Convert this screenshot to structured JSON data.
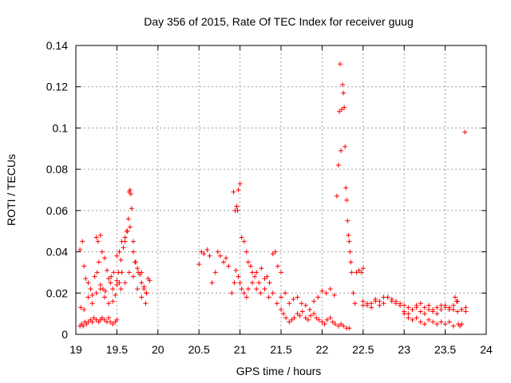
{
  "chart_data": {
    "type": "scatter",
    "title": "Day 356 of 2015, Rate Of TEC Index for receiver guug",
    "xlabel": "GPS time / hours",
    "ylabel": "ROTI / TECUs",
    "xlim": [
      19,
      24
    ],
    "ylim": [
      0,
      0.14
    ],
    "xticks": [
      19,
      19.5,
      20,
      20.5,
      21,
      21.5,
      22,
      22.5,
      23,
      23.5,
      24
    ],
    "xtick_labels": [
      "19",
      "19.5",
      "20",
      "20.5",
      "21",
      "21.5",
      "22",
      "22.5",
      "23",
      "23.5",
      "24"
    ],
    "yticks": [
      0,
      0.02,
      0.04,
      0.06,
      0.08,
      0.1,
      0.12,
      0.14
    ],
    "ytick_labels": [
      "0",
      "0.02",
      "0.04",
      "0.06",
      "0.08",
      "0.1",
      "0.12",
      "0.14"
    ],
    "grid": true,
    "marker": "+",
    "color": "#ff0000",
    "series": [
      {
        "name": "ROTI",
        "x": [
          19.05,
          19.07,
          19.09,
          19.11,
          19.13,
          19.15,
          19.18,
          19.2,
          19.22,
          19.25,
          19.28,
          19.3,
          19.32,
          19.35,
          19.38,
          19.4,
          19.42,
          19.45,
          19.48,
          19.5,
          19.05,
          19.08,
          19.1,
          19.12,
          19.15,
          19.18,
          19.2,
          19.23,
          19.26,
          19.28,
          19.3,
          19.33,
          19.36,
          19.4,
          19.43,
          19.46,
          19.5,
          19.53,
          19.56,
          19.6,
          19.63,
          19.66,
          19.7,
          19.73,
          19.76,
          19.8,
          19.83,
          19.86,
          19.9,
          19.06,
          19.1,
          19.15,
          19.2,
          19.25,
          19.3,
          19.35,
          19.4,
          19.45,
          19.5,
          19.55,
          19.6,
          19.65,
          19.7,
          19.75,
          19.8,
          19.85,
          19.52,
          19.55,
          19.58,
          19.6,
          19.62,
          19.64,
          19.65,
          19.66,
          19.67,
          19.68,
          19.7,
          19.72,
          19.75,
          19.78,
          19.8,
          19.83,
          19.86,
          19.88,
          19.25,
          19.27,
          19.3,
          19.32,
          19.35,
          19.38,
          19.42,
          19.45,
          19.48,
          19.5,
          19.53,
          19.56,
          20.5,
          20.53,
          20.56,
          20.6,
          20.63,
          20.66,
          20.7,
          20.73,
          20.76,
          20.8,
          20.83,
          20.86,
          20.9,
          20.93,
          20.95,
          20.96,
          20.97,
          20.98,
          21.0,
          21.02,
          21.05,
          21.08,
          21.1,
          21.13,
          21.15,
          21.18,
          21.2,
          21.23,
          21.26,
          21.3,
          21.33,
          21.36,
          21.4,
          21.43,
          21.46,
          21.5,
          20.92,
          20.94,
          20.96,
          20.98,
          21.0,
          21.02,
          21.05,
          21.08,
          21.1,
          21.15,
          21.2,
          21.25,
          21.3,
          21.35,
          21.4,
          21.45,
          21.5,
          21.55,
          21.6,
          21.65,
          21.7,
          21.75,
          21.8,
          21.85,
          21.9,
          21.95,
          22.0,
          22.05,
          22.1,
          22.15,
          21.5,
          21.53,
          21.56,
          21.6,
          21.63,
          21.66,
          21.7,
          21.73,
          21.76,
          21.8,
          21.83,
          21.86,
          21.9,
          21.93,
          21.96,
          22.0,
          22.03,
          22.06,
          22.1,
          22.13,
          22.16,
          22.2,
          22.23,
          22.26,
          22.3,
          22.33,
          22.18,
          22.2,
          22.21,
          22.22,
          22.23,
          22.24,
          22.25,
          22.26,
          22.27,
          22.28,
          22.29,
          22.3,
          22.31,
          22.32,
          22.33,
          22.34,
          22.35,
          22.36,
          22.38,
          22.4,
          22.42,
          22.45,
          22.48,
          22.5,
          22.5,
          22.55,
          22.6,
          22.65,
          22.7,
          22.75,
          22.8,
          22.85,
          22.9,
          22.95,
          23.0,
          23.05,
          23.1,
          23.15,
          23.2,
          23.25,
          23.3,
          23.35,
          23.4,
          23.45,
          23.5,
          23.55,
          23.6,
          23.65,
          23.7,
          23.75,
          22.5,
          22.55,
          22.6,
          22.65,
          22.7,
          22.75,
          22.8,
          22.85,
          22.9,
          22.95,
          23.0,
          23.05,
          23.1,
          23.15,
          23.2,
          23.25,
          23.3,
          23.35,
          23.4,
          23.45,
          23.5,
          23.55,
          23.6,
          23.65,
          23.7,
          23.75,
          23.0,
          23.05,
          23.1,
          23.15,
          23.2,
          23.25,
          23.3,
          23.35,
          23.4,
          23.45,
          23.5,
          23.55,
          23.6,
          23.62,
          23.64,
          23.66,
          23.68,
          23.7,
          23.74
        ],
        "y": [
          0.004,
          0.005,
          0.004,
          0.006,
          0.005,
          0.006,
          0.007,
          0.006,
          0.008,
          0.007,
          0.006,
          0.007,
          0.008,
          0.007,
          0.006,
          0.008,
          0.006,
          0.005,
          0.006,
          0.007,
          0.041,
          0.045,
          0.033,
          0.027,
          0.025,
          0.022,
          0.019,
          0.028,
          0.03,
          0.035,
          0.024,
          0.022,
          0.021,
          0.027,
          0.028,
          0.03,
          0.038,
          0.04,
          0.045,
          0.047,
          0.05,
          0.052,
          0.045,
          0.035,
          0.03,
          0.025,
          0.022,
          0.02,
          0.026,
          0.013,
          0.012,
          0.018,
          0.015,
          0.02,
          0.022,
          0.018,
          0.015,
          0.016,
          0.024,
          0.022,
          0.025,
          0.03,
          0.028,
          0.022,
          0.018,
          0.015,
          0.03,
          0.036,
          0.042,
          0.045,
          0.05,
          0.056,
          0.069,
          0.07,
          0.068,
          0.061,
          0.04,
          0.035,
          0.032,
          0.029,
          0.03,
          0.023,
          0.02,
          0.027,
          0.047,
          0.045,
          0.048,
          0.04,
          0.037,
          0.031,
          0.025,
          0.022,
          0.019,
          0.026,
          0.025,
          0.03,
          0.034,
          0.04,
          0.039,
          0.041,
          0.038,
          0.025,
          0.03,
          0.04,
          0.038,
          0.035,
          0.037,
          0.033,
          0.02,
          0.025,
          0.031,
          0.062,
          0.06,
          0.07,
          0.073,
          0.047,
          0.045,
          0.04,
          0.035,
          0.033,
          0.03,
          0.028,
          0.03,
          0.025,
          0.032,
          0.027,
          0.028,
          0.025,
          0.039,
          0.04,
          0.033,
          0.03,
          0.069,
          0.06,
          0.062,
          0.028,
          0.025,
          0.022,
          0.02,
          0.018,
          0.022,
          0.025,
          0.022,
          0.02,
          0.022,
          0.018,
          0.02,
          0.015,
          0.018,
          0.02,
          0.015,
          0.017,
          0.018,
          0.015,
          0.014,
          0.012,
          0.016,
          0.018,
          0.021,
          0.02,
          0.022,
          0.019,
          0.012,
          0.01,
          0.008,
          0.006,
          0.007,
          0.008,
          0.01,
          0.009,
          0.011,
          0.008,
          0.007,
          0.009,
          0.01,
          0.008,
          0.007,
          0.006,
          0.005,
          0.007,
          0.008,
          0.006,
          0.005,
          0.004,
          0.005,
          0.004,
          0.003,
          0.003,
          0.067,
          0.082,
          0.108,
          0.131,
          0.089,
          0.109,
          0.121,
          0.117,
          0.11,
          0.091,
          0.071,
          0.065,
          0.055,
          0.048,
          0.045,
          0.04,
          0.035,
          0.03,
          0.02,
          0.015,
          0.03,
          0.031,
          0.03,
          0.032,
          0.014,
          0.015,
          0.013,
          0.016,
          0.014,
          0.015,
          0.018,
          0.017,
          0.016,
          0.015,
          0.014,
          0.013,
          0.012,
          0.014,
          0.015,
          0.013,
          0.014,
          0.012,
          0.013,
          0.014,
          0.013,
          0.012,
          0.014,
          0.016,
          0.012,
          0.011,
          0.016,
          0.014,
          0.015,
          0.017,
          0.016,
          0.018,
          0.018,
          0.016,
          0.015,
          0.014,
          0.011,
          0.01,
          0.012,
          0.013,
          0.011,
          0.01,
          0.012,
          0.011,
          0.01,
          0.012,
          0.014,
          0.013,
          0.012,
          0.011,
          0.012,
          0.013,
          0.01,
          0.008,
          0.007,
          0.008,
          0.006,
          0.005,
          0.007,
          0.006,
          0.005,
          0.006,
          0.005,
          0.006,
          0.004,
          0.018,
          0.016,
          0.005,
          0.004,
          0.005,
          0.098
        ]
      }
    ]
  }
}
